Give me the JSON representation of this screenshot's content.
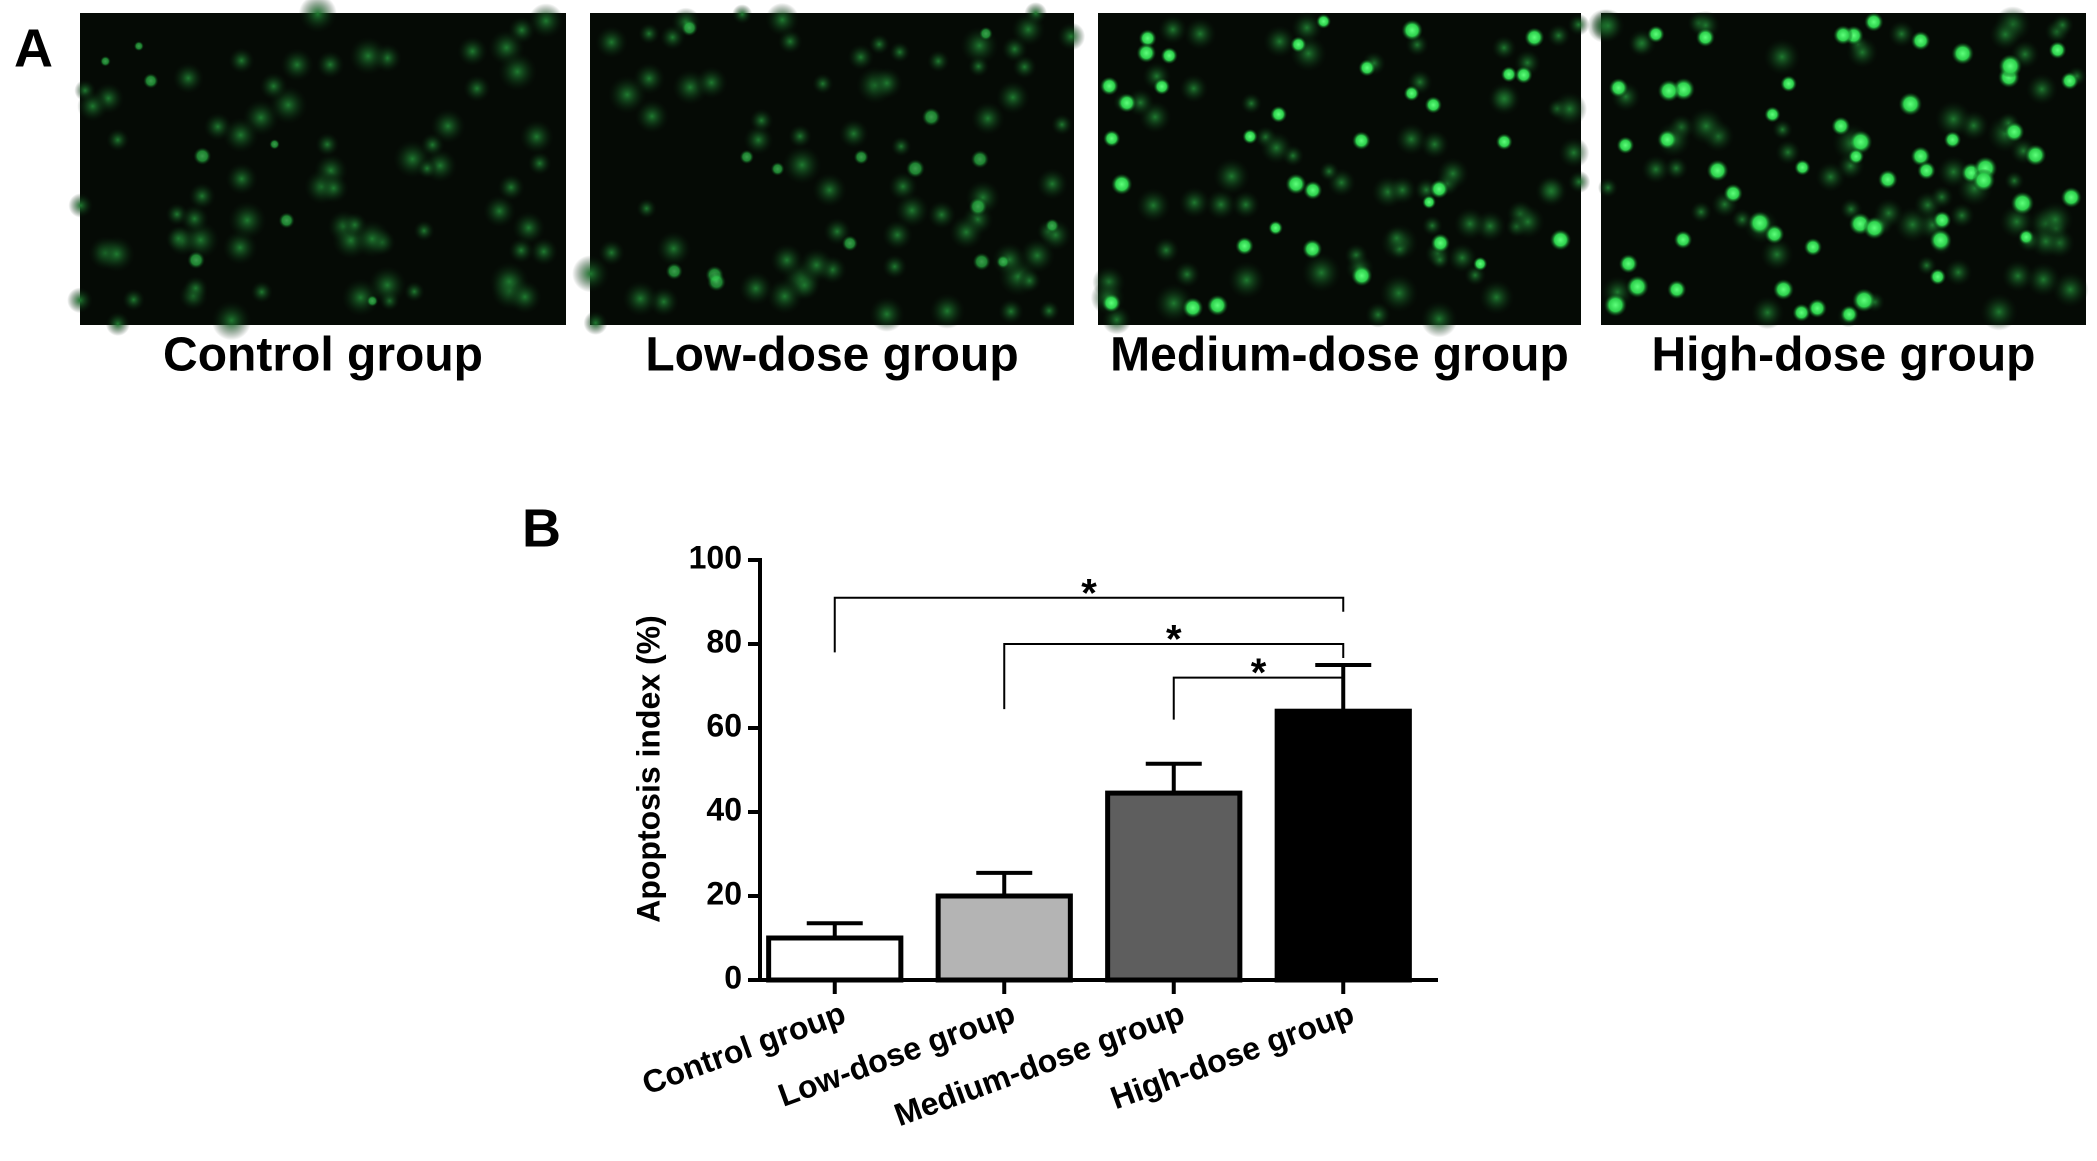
{
  "panel_a": {
    "label": "A",
    "captions": [
      "Control group",
      "Low-dose group",
      "Medium-dose group",
      "High-dose group"
    ]
  },
  "chart_data": {
    "type": "bar",
    "panel_label": "B",
    "ylabel": "Apoptosis index (%)",
    "categories": [
      "Control group",
      "Low-dose group",
      "Medium-dose group",
      "High-dose group"
    ],
    "values": [
      10,
      20,
      44.5,
      64
    ],
    "errors": [
      3.5,
      5.5,
      7,
      11
    ],
    "colors": [
      "#ffffff",
      "#b4b4b4",
      "#5e5e5e",
      "#000000"
    ],
    "ylim": [
      0,
      100
    ],
    "yticks": [
      0,
      20,
      40,
      60,
      80,
      100
    ],
    "annotations": [
      {
        "text": "*",
        "from": 0,
        "to": 3,
        "y": 91,
        "y_left": 78
      },
      {
        "text": "*",
        "from": 1,
        "to": 3,
        "y": 80,
        "y_left": 64.5
      },
      {
        "text": "*",
        "from": 2,
        "to": 3,
        "y": 72,
        "y_left": 62
      }
    ]
  }
}
